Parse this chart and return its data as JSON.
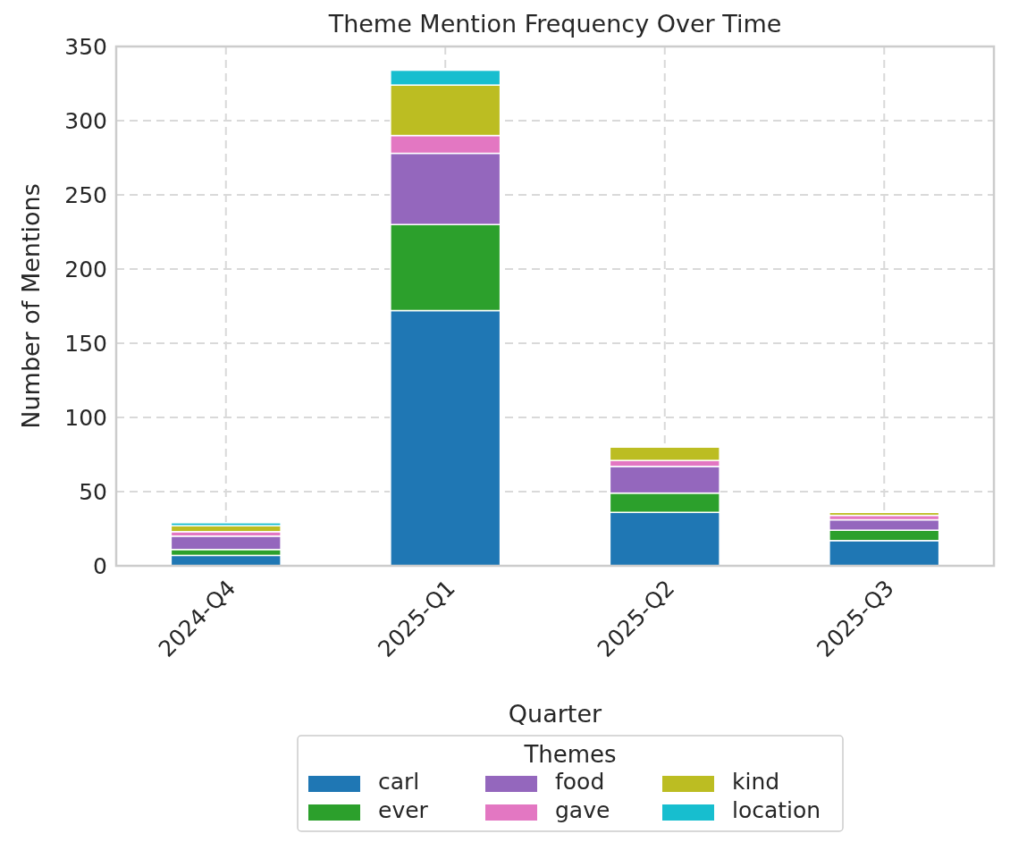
{
  "chart_data": {
    "type": "bar",
    "title": "Theme Mention Frequency Over Time",
    "xlabel": "Quarter",
    "ylabel": "Number of Mentions",
    "legend_title": "Themes",
    "categories": [
      "2024-Q4",
      "2025-Q1",
      "2025-Q2",
      "2025-Q3"
    ],
    "series": [
      {
        "name": "carl",
        "color": "#1f77b4",
        "values": [
          7,
          172,
          36,
          17
        ]
      },
      {
        "name": "ever",
        "color": "#2ca02c",
        "values": [
          4,
          58,
          13,
          7
        ]
      },
      {
        "name": "food",
        "color": "#9467bd",
        "values": [
          9,
          48,
          18,
          7
        ]
      },
      {
        "name": "gave",
        "color": "#e377c2",
        "values": [
          3,
          12,
          4,
          3
        ]
      },
      {
        "name": "kind",
        "color": "#bcbd22",
        "values": [
          4,
          34,
          9,
          2
        ]
      },
      {
        "name": "location",
        "color": "#17becf",
        "values": [
          2,
          10,
          0,
          0
        ]
      }
    ],
    "stacked": true,
    "ylim": [
      0,
      350
    ],
    "yticks": [
      0,
      50,
      100,
      150,
      200,
      250,
      300,
      350
    ],
    "grid": true,
    "legend": "bottom"
  }
}
